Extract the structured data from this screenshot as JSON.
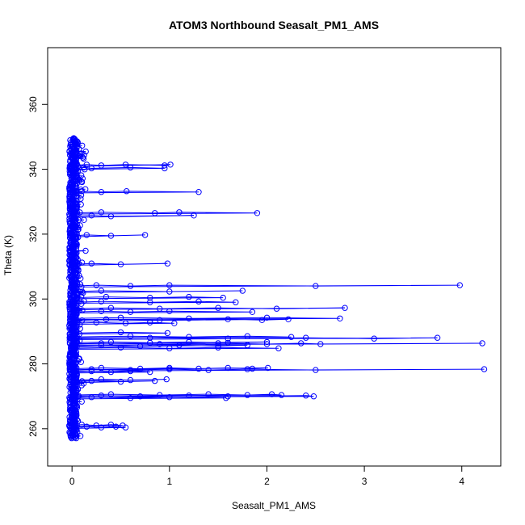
{
  "chart_data": {
    "type": "scatter",
    "title": "ATOM3 Northbound Seasalt_PM1_AMS",
    "xlabel": "Seasalt_PM1_AMS",
    "ylabel": "Theta (K)",
    "xlim": [
      -0.25,
      4.4
    ],
    "ylim": [
      248.5,
      377.5
    ],
    "xticks": [
      0,
      1,
      2,
      3,
      4
    ],
    "yticks": [
      260,
      280,
      300,
      320,
      340,
      360
    ],
    "series_color": "#0000ff",
    "marker": "open-circle",
    "connect_points": true,
    "grid": false,
    "near_zero_band": {
      "x_range": [
        -0.05,
        0.12
      ],
      "y_range": [
        257,
        349.5
      ]
    },
    "spikes": [
      {
        "y": 341.2,
        "x": [
          0.02,
          0.15,
          0.3,
          0.55,
          0.95,
          1.01
        ]
      },
      {
        "y": 340.3,
        "x": [
          0.02,
          0.12,
          0.2,
          0.6,
          0.95
        ]
      },
      {
        "y": 333,
        "x": [
          0.02,
          0.1,
          0.3,
          0.56,
          1.3
        ]
      },
      {
        "y": 326.5,
        "x": [
          0.02,
          0.3,
          0.85,
          1.1,
          1.9
        ]
      },
      {
        "y": 325.5,
        "x": [
          0.02,
          0.2,
          0.4,
          1.25
        ]
      },
      {
        "y": 319.5,
        "x": [
          0.02,
          0.15,
          0.4,
          0.75
        ]
      },
      {
        "y": 310.7,
        "x": [
          0.02,
          0.2,
          0.5,
          0.98
        ]
      },
      {
        "y": 304,
        "x": [
          0.02,
          0.25,
          0.6,
          1.0,
          2.5,
          3.98
        ]
      },
      {
        "y": 302.3,
        "x": [
          0.02,
          0.3,
          1.0,
          1.75
        ]
      },
      {
        "y": 300.4,
        "x": [
          0.02,
          0.35,
          0.8,
          1.2,
          1.55
        ]
      },
      {
        "y": 299,
        "x": [
          0.02,
          0.3,
          0.8,
          1.3,
          1.68
        ]
      },
      {
        "y": 297,
        "x": [
          0.02,
          0.4,
          0.9,
          1.5,
          2.1,
          2.8
        ]
      },
      {
        "y": 296,
        "x": [
          0.02,
          0.3,
          0.6,
          1.0,
          1.85
        ]
      },
      {
        "y": 294,
        "x": [
          0.02,
          0.5,
          1.2,
          2.0,
          2.75
        ]
      },
      {
        "y": 293.5,
        "x": [
          0.02,
          0.35,
          0.9,
          1.6,
          1.95,
          2.22
        ]
      },
      {
        "y": 292.5,
        "x": [
          0.02,
          0.25,
          0.55,
          0.8,
          1.05
        ]
      },
      {
        "y": 289.5,
        "x": [
          0.02,
          0.5,
          0.98
        ]
      },
      {
        "y": 288.3,
        "x": [
          0.02,
          0.6,
          1.2,
          1.8,
          2.25
        ]
      },
      {
        "y": 287.8,
        "x": [
          0.02,
          0.8,
          1.6,
          2.4,
          3.1,
          3.75
        ]
      },
      {
        "y": 286.5,
        "x": [
          0.02,
          0.4,
          0.8,
          1.2,
          1.6,
          2.0
        ]
      },
      {
        "y": 286.1,
        "x": [
          0.02,
          0.3,
          0.9,
          1.5,
          2.0,
          2.35,
          2.55,
          4.21
        ]
      },
      {
        "y": 285.5,
        "x": [
          0.02,
          0.3,
          0.7,
          1.1,
          1.5,
          1.8
        ]
      },
      {
        "y": 284.8,
        "x": [
          0.02,
          0.5,
          1.0,
          1.5,
          2.12
        ]
      },
      {
        "y": 278.5,
        "x": [
          0.02,
          0.3,
          0.7,
          1.0,
          1.3,
          1.6,
          1.85,
          2.01
        ]
      },
      {
        "y": 278.1,
        "x": [
          0.02,
          0.2,
          0.6,
          1.0,
          1.4,
          1.8,
          2.5,
          4.23
        ]
      },
      {
        "y": 277.5,
        "x": [
          0.02,
          0.2,
          0.4,
          0.6,
          0.8
        ]
      },
      {
        "y": 275,
        "x": [
          0.02,
          0.3,
          0.6,
          0.97
        ]
      },
      {
        "y": 274.5,
        "x": [
          0.02,
          0.2,
          0.5,
          0.85
        ]
      },
      {
        "y": 270.4,
        "x": [
          0.02,
          0.4,
          0.9,
          1.4,
          1.8,
          2.05,
          2.15
        ]
      },
      {
        "y": 270,
        "x": [
          0.02,
          0.3,
          0.7,
          1.2,
          1.6,
          2.4,
          2.48
        ]
      },
      {
        "y": 269.5,
        "x": [
          0.02,
          0.2,
          0.6,
          1.0,
          1.58
        ]
      },
      {
        "y": 261,
        "x": [
          0.02,
          0.1,
          0.25,
          0.4,
          0.52
        ]
      },
      {
        "y": 260.4,
        "x": [
          0.02,
          0.15,
          0.3,
          0.45,
          0.55
        ]
      }
    ]
  }
}
